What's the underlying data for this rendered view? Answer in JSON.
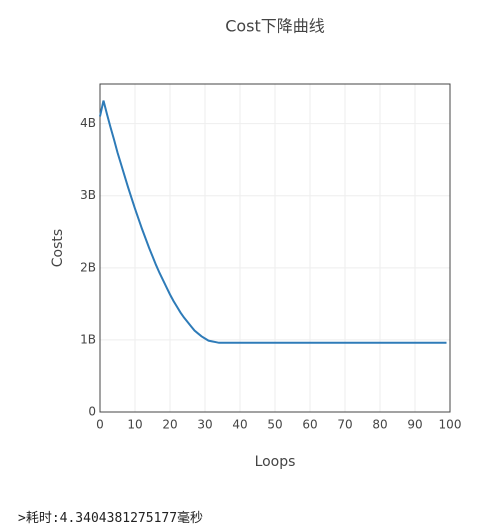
{
  "chart_data": {
    "type": "line",
    "title": "Cost下降曲线",
    "x_label": "Loops",
    "y_label": "Costs",
    "x": [
      0,
      1,
      2,
      3,
      4,
      5,
      6,
      7,
      8,
      9,
      10,
      11,
      12,
      13,
      14,
      15,
      16,
      17,
      18,
      19,
      20,
      21,
      22,
      23,
      24,
      25,
      26,
      27,
      28,
      29,
      30,
      31,
      32,
      33,
      34,
      35,
      36,
      37,
      38,
      39,
      40,
      41,
      42,
      43,
      44,
      45,
      46,
      47,
      48,
      49,
      50,
      51,
      52,
      53,
      54,
      55,
      56,
      57,
      58,
      59,
      60,
      61,
      62,
      63,
      64,
      65,
      66,
      67,
      68,
      69,
      70,
      71,
      72,
      73,
      74,
      75,
      76,
      77,
      78,
      79,
      80,
      81,
      82,
      83,
      84,
      85,
      86,
      87,
      88,
      89,
      90,
      91,
      92,
      93,
      94,
      95,
      96,
      97,
      98,
      99
    ],
    "series": [
      {
        "color": "#2e7bb8",
        "values": [
          4100000000,
          4320000000,
          4130000000,
          3950000000,
          3780000000,
          3600000000,
          3440000000,
          3280000000,
          3120000000,
          2970000000,
          2820000000,
          2680000000,
          2540000000,
          2410000000,
          2280000000,
          2160000000,
          2040000000,
          1930000000,
          1830000000,
          1730000000,
          1630000000,
          1540000000,
          1460000000,
          1380000000,
          1310000000,
          1250000000,
          1190000000,
          1130000000,
          1090000000,
          1050000000,
          1020000000,
          990000000,
          980000000,
          970000000,
          960000000,
          960000000,
          960000000,
          960000000,
          960000000,
          960000000,
          960000000,
          960000000,
          960000000,
          960000000,
          960000000,
          960000000,
          960000000,
          960000000,
          960000000,
          960000000,
          960000000,
          960000000,
          960000000,
          960000000,
          960000000,
          960000000,
          960000000,
          960000000,
          960000000,
          960000000,
          960000000,
          960000000,
          960000000,
          960000000,
          960000000,
          960000000,
          960000000,
          960000000,
          960000000,
          960000000,
          960000000,
          960000000,
          960000000,
          960000000,
          960000000,
          960000000,
          960000000,
          960000000,
          960000000,
          960000000,
          960000000,
          960000000,
          960000000,
          960000000,
          960000000,
          960000000,
          960000000,
          960000000,
          960000000,
          960000000,
          960000000,
          960000000,
          960000000,
          960000000,
          960000000,
          960000000,
          960000000,
          960000000,
          960000000,
          960000000
        ]
      }
    ],
    "xlim": [
      0,
      100
    ],
    "xticks": [
      0,
      10,
      20,
      30,
      40,
      50,
      60,
      70,
      80,
      90,
      100
    ],
    "ylim": [
      0,
      4550000000
    ],
    "yticks": [
      0,
      {
        "value": 1000000000,
        "label": "1B"
      },
      {
        "value": 2000000000,
        "label": "2B"
      },
      {
        "value": 3000000000,
        "label": "3B"
      },
      {
        "value": 4000000000,
        "label": "4B"
      }
    ],
    "grid": true
  },
  "footer": ">耗时:4.3404381275177毫秒"
}
